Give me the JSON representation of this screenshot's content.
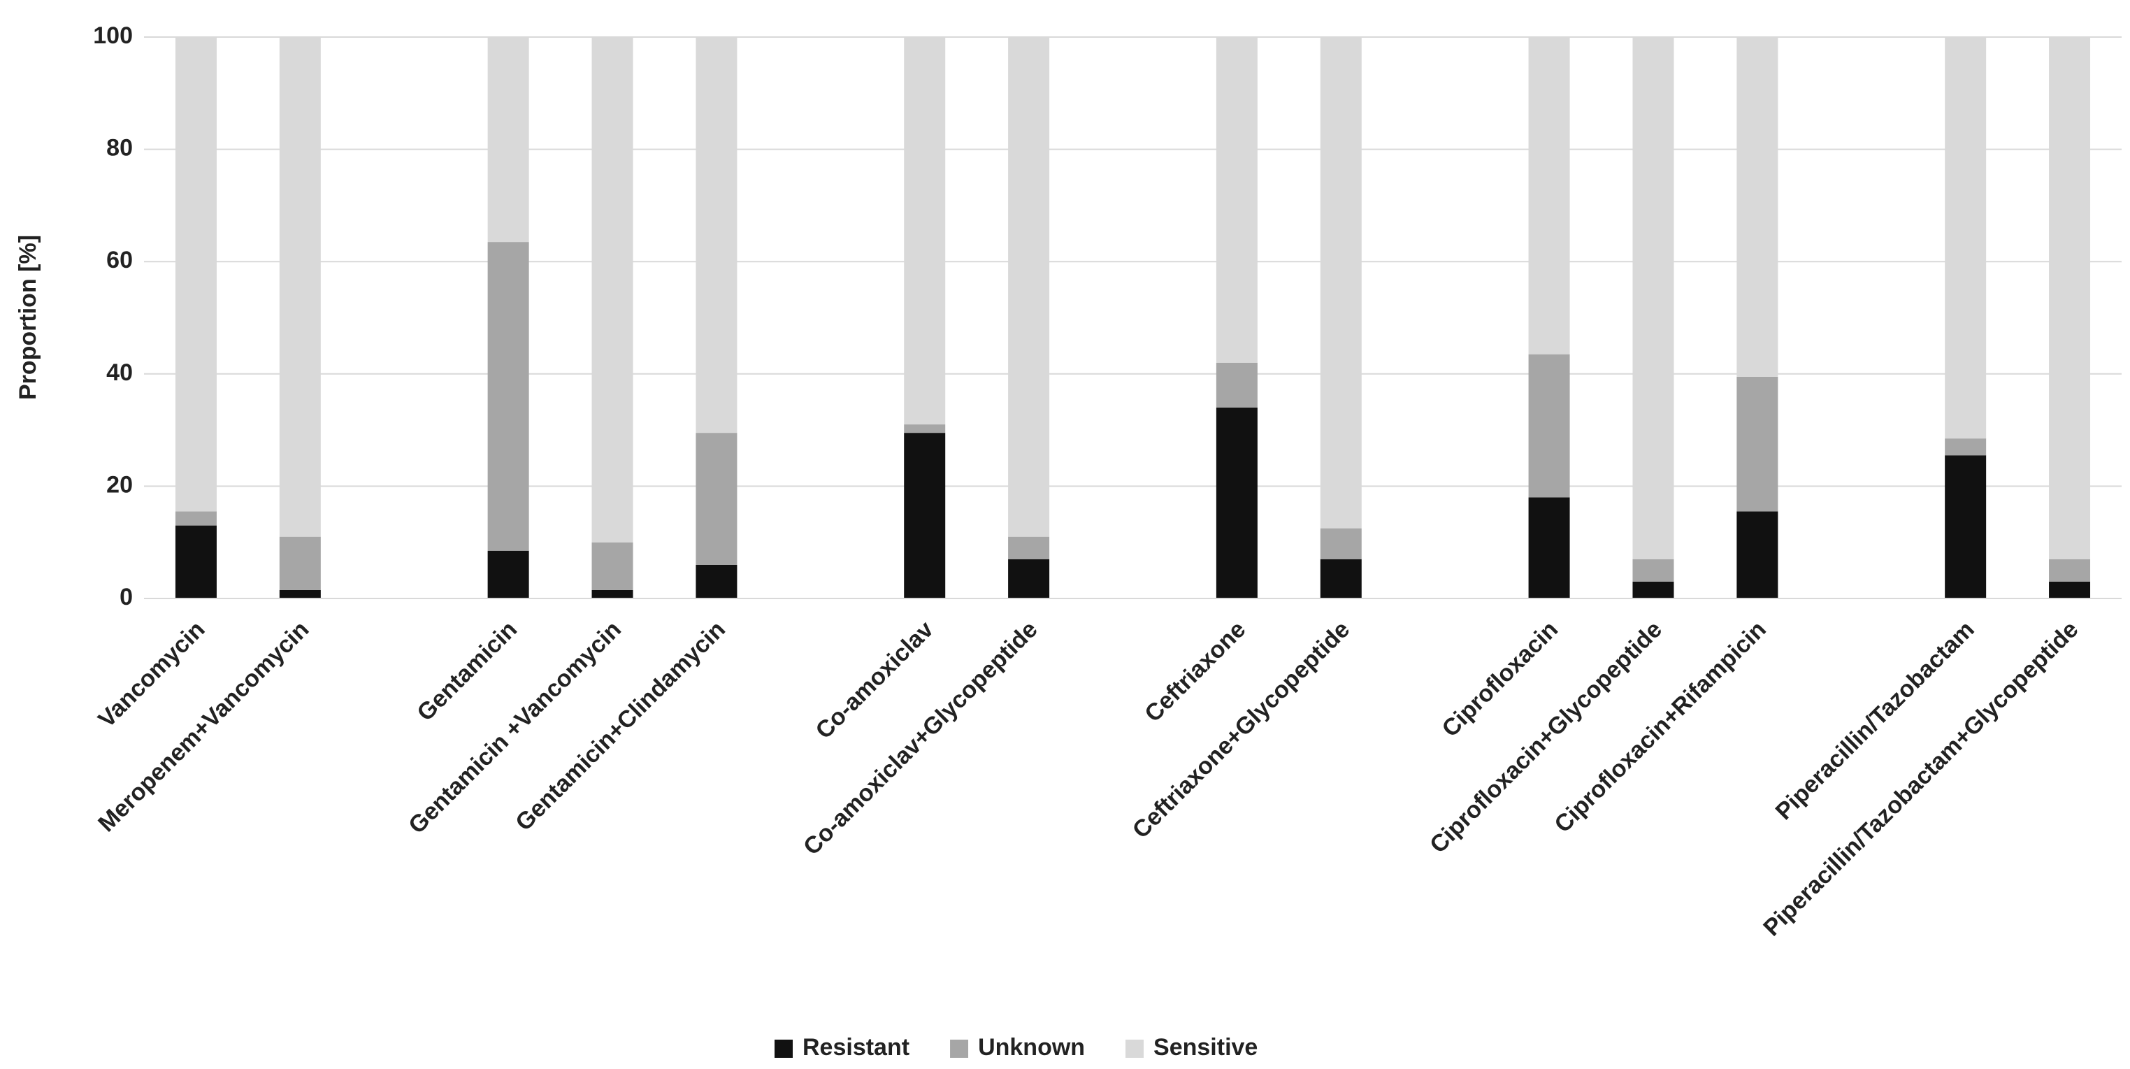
{
  "chart_data": {
    "type": "stacked_bar",
    "y_label": "Proportion [%]",
    "categories": [
      "Vancomycin",
      "Meropenem+Vancomycin",
      null,
      "Gentamicin",
      "Gentamicin +Vancomycin",
      "Gentamicin+Clindamycin",
      null,
      "Co-amoxiclav",
      "Co-amoxiclav+Glycopeptide",
      null,
      "Ceftriaxone",
      "Ceftriaxone+Glycopeptide",
      null,
      "Ciprofloxacin",
      "Ciprofloxacin+Glycopeptide",
      "Ciprofloxacin+Rifampicin",
      null,
      "Piperacillin/Tazobactam",
      "Piperacillin/Tazobactam+Glycopeptide"
    ],
    "series": [
      {
        "name": "Resistant",
        "color": "#111111",
        "values": [
          13,
          1.5,
          null,
          8.5,
          1.5,
          6,
          null,
          29.5,
          7,
          null,
          34,
          7,
          null,
          18,
          3,
          15.5,
          null,
          25.5,
          3
        ]
      },
      {
        "name": "Unknown",
        "color": "#a6a6a6",
        "values": [
          2.5,
          9.5,
          null,
          55,
          8.5,
          23.5,
          null,
          1.5,
          4,
          null,
          8,
          5.5,
          null,
          25.5,
          4,
          24,
          null,
          3,
          4
        ]
      },
      {
        "name": "Sensitive",
        "color": "#d9d9d9",
        "values": [
          84.5,
          89,
          null,
          36.5,
          90,
          70.5,
          null,
          69,
          89,
          null,
          58,
          87.5,
          null,
          56.5,
          93,
          60.5,
          null,
          71.5,
          93
        ]
      }
    ],
    "ylim": [
      0,
      100
    ],
    "yticks": [
      0,
      20,
      40,
      60,
      80,
      100
    ],
    "grid": true,
    "legend": "bottom"
  }
}
